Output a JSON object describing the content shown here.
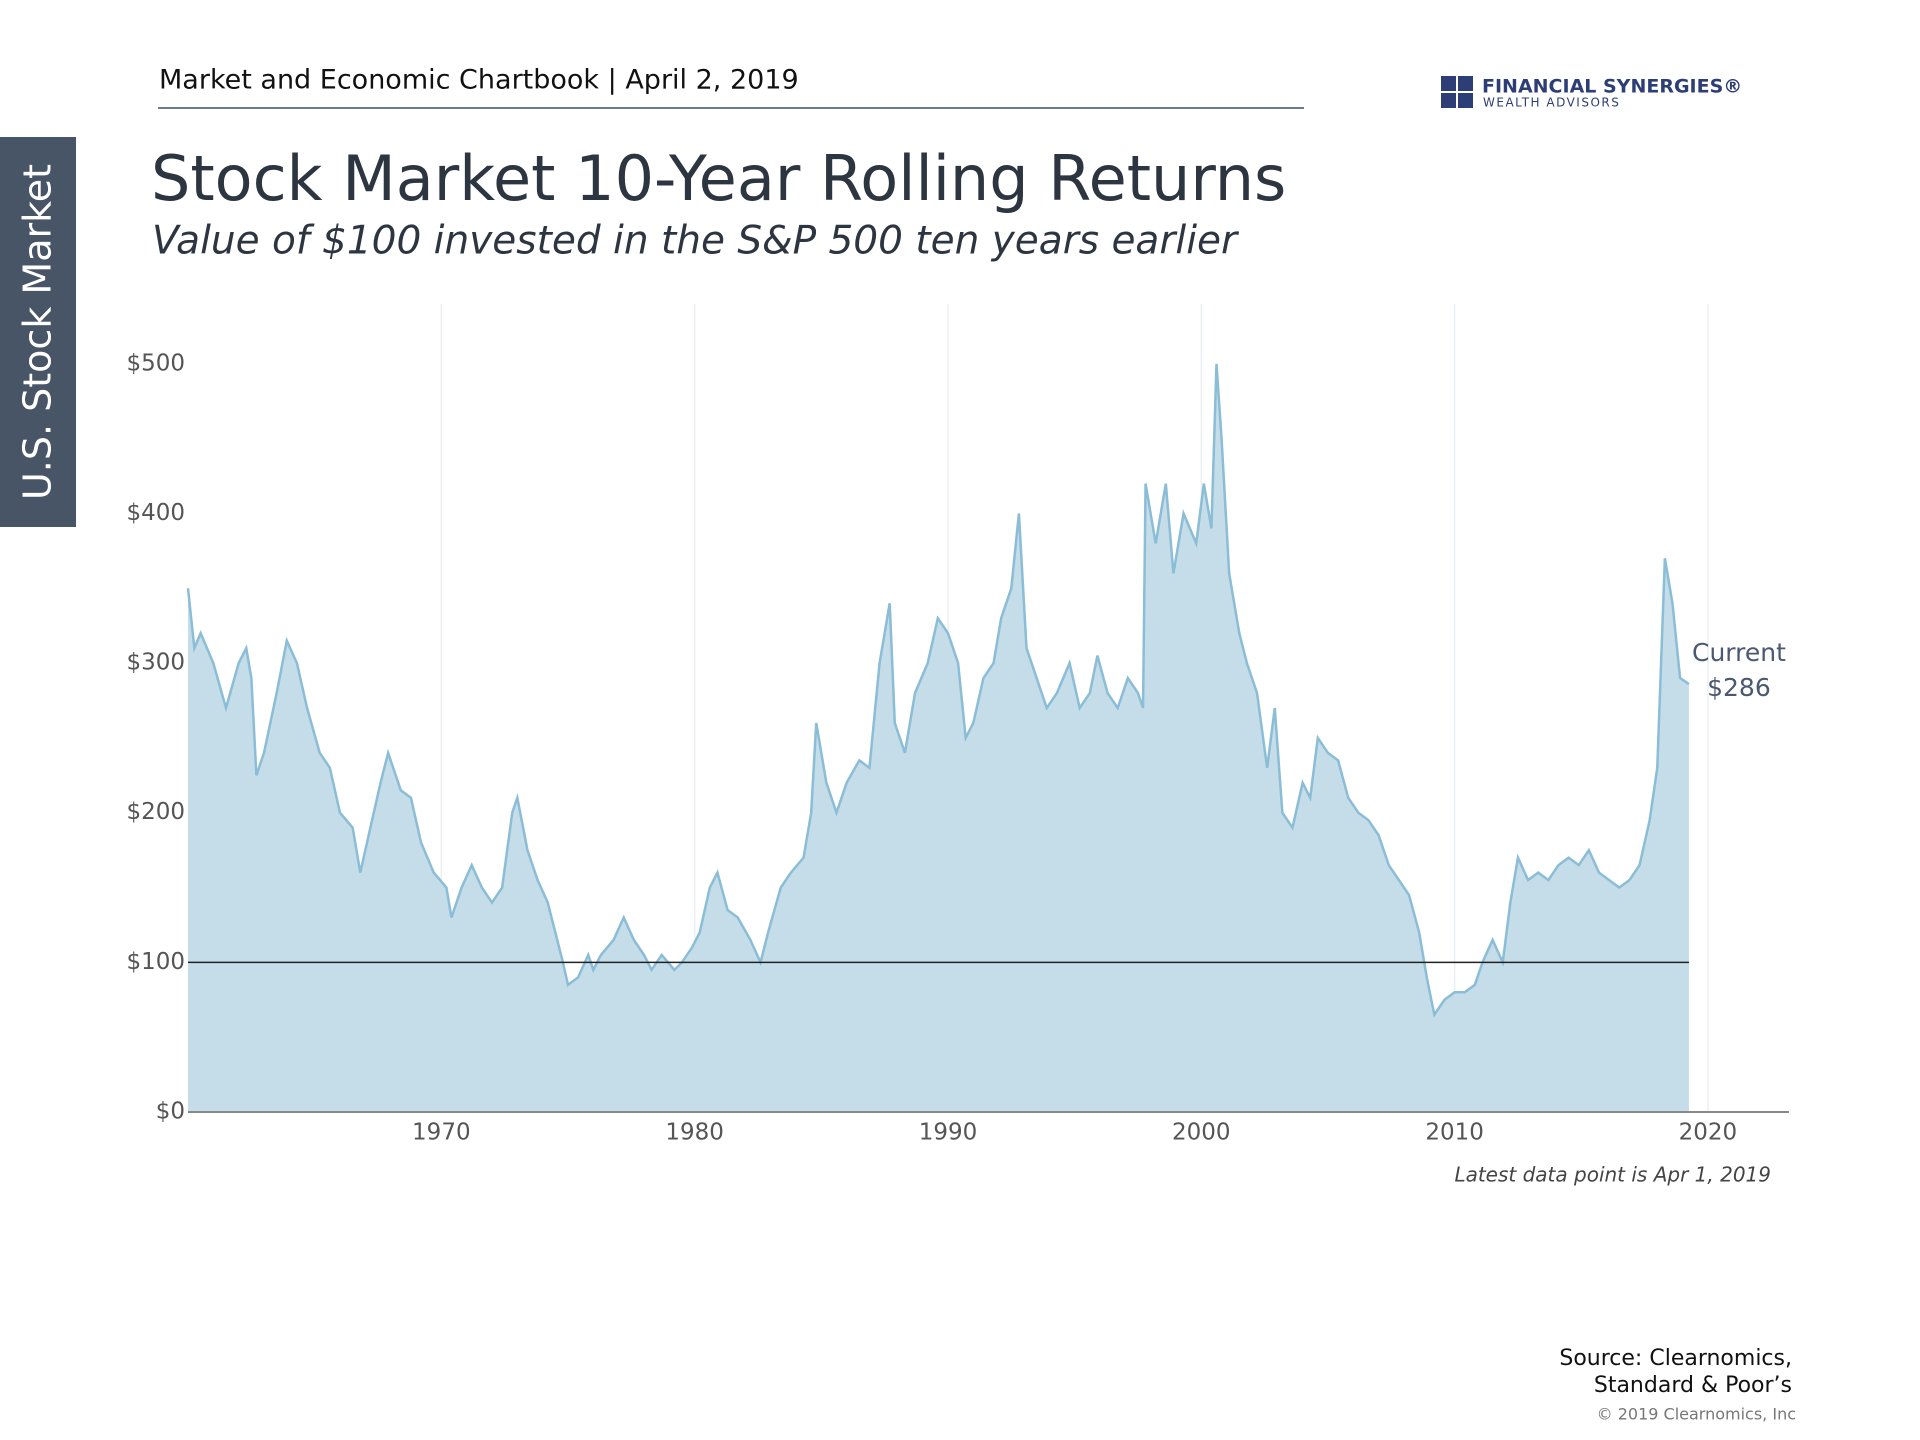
{
  "header": "Market and Economic Chartbook | April 2, 2019",
  "brand": {
    "name": "FINANCIAL SYNERGIES®",
    "sub": "WEALTH ADVISORS"
  },
  "side_tab": "U.S. Stock Market",
  "chart_data": {
    "type": "area",
    "title": "Stock Market 10-Year Rolling Returns",
    "subtitle": "Value of $100 invested in the S&P 500 ten years earlier",
    "annotation": [
      "Current",
      "$286"
    ],
    "note": "Latest data point is Apr 1, 2019",
    "reference_line": 100,
    "color": "#8bbdd6",
    "fill": "#c5dde9",
    "xlim": [
      1960,
      2023.2
    ],
    "ylim": [
      0,
      540
    ],
    "xticks": [
      1970,
      1980,
      1990,
      2000,
      2010,
      2020
    ],
    "yticks": [
      {
        "value": 0,
        "label": "$0"
      },
      {
        "value": 100,
        "label": "$100"
      },
      {
        "value": 200,
        "label": "$200"
      },
      {
        "value": 300,
        "label": "$300"
      },
      {
        "value": 400,
        "label": "$400"
      },
      {
        "value": 500,
        "label": "$500"
      }
    ],
    "grid": true,
    "x": [
      1960.0,
      1960.25,
      1960.5,
      1961,
      1961.5,
      1962,
      1962.3,
      1962.5,
      1962.7,
      1963,
      1963.5,
      1963.9,
      1964.3,
      1964.7,
      1965.2,
      1965.6,
      1966,
      1966.5,
      1966.8,
      1967.2,
      1967.6,
      1967.9,
      1968.4,
      1968.8,
      1969.2,
      1969.7,
      1970.2,
      1970.4,
      1970.8,
      1971.2,
      1971.6,
      1972,
      1972.4,
      1972.8,
      1973.0,
      1973.4,
      1973.8,
      1974.2,
      1974.5,
      1974.8,
      1975.0,
      1975.4,
      1975.8,
      1976.0,
      1976.3,
      1976.8,
      1977.2,
      1977.6,
      1978.0,
      1978.3,
      1978.7,
      1979.2,
      1979.5,
      1979.9,
      1980.2,
      1980.6,
      1980.9,
      1981.3,
      1981.7,
      1982.2,
      1982.6,
      1982.9,
      1983.4,
      1983.8,
      1984.3,
      1984.6,
      1984.8,
      1985.2,
      1985.6,
      1986,
      1986.5,
      1986.9,
      1987.3,
      1987.7,
      1987.9,
      1988.3,
      1988.7,
      1989.2,
      1989.6,
      1990.0,
      1990.4,
      1990.7,
      1991.0,
      1991.4,
      1991.8,
      1992.1,
      1992.5,
      1992.8,
      1993.1,
      1993.5,
      1993.9,
      1994.3,
      1994.8,
      1995.2,
      1995.6,
      1995.9,
      1996.3,
      1996.7,
      1997.1,
      1997.5,
      1997.7,
      1997.8,
      1998.2,
      1998.6,
      1998.9,
      1999.3,
      1999.8,
      2000.1,
      2000.4,
      2000.6,
      2000.8,
      2001.1,
      2001.5,
      2001.8,
      2002.2,
      2002.6,
      2002.9,
      2003.2,
      2003.6,
      2004.0,
      2004.3,
      2004.6,
      2005.0,
      2005.4,
      2005.8,
      2006.2,
      2006.6,
      2007.0,
      2007.4,
      2007.8,
      2008.2,
      2008.6,
      2008.9,
      2009.2,
      2009.6,
      2010.0,
      2010.4,
      2010.8,
      2011.1,
      2011.5,
      2011.9,
      2012.2,
      2012.5,
      2012.9,
      2013.3,
      2013.7,
      2014.1,
      2014.5,
      2014.9,
      2015.3,
      2015.7,
      2016.1,
      2016.5,
      2016.9,
      2017.3,
      2017.7,
      2018.0,
      2018.3,
      2018.6,
      2018.9,
      2019.25
    ],
    "values": [
      350,
      310,
      320,
      300,
      270,
      300,
      310,
      290,
      225,
      240,
      280,
      315,
      300,
      270,
      240,
      230,
      200,
      190,
      160,
      190,
      220,
      240,
      215,
      210,
      180,
      160,
      150,
      130,
      150,
      165,
      150,
      140,
      150,
      200,
      210,
      175,
      155,
      140,
      120,
      100,
      85,
      90,
      105,
      95,
      105,
      115,
      130,
      115,
      105,
      95,
      105,
      95,
      100,
      110,
      120,
      150,
      160,
      135,
      130,
      115,
      100,
      120,
      150,
      160,
      170,
      200,
      260,
      220,
      200,
      220,
      235,
      230,
      300,
      340,
      260,
      240,
      280,
      300,
      330,
      320,
      300,
      250,
      260,
      290,
      300,
      330,
      350,
      400,
      310,
      290,
      270,
      280,
      300,
      270,
      280,
      305,
      280,
      270,
      290,
      280,
      270,
      420,
      380,
      420,
      360,
      400,
      380,
      420,
      390,
      500,
      450,
      360,
      320,
      300,
      280,
      230,
      270,
      200,
      190,
      220,
      210,
      250,
      240,
      235,
      210,
      200,
      195,
      185,
      165,
      155,
      145,
      120,
      90,
      65,
      75,
      80,
      80,
      85,
      100,
      115,
      100,
      140,
      170,
      155,
      160,
      155,
      165,
      170,
      165,
      175,
      160,
      155,
      150,
      155,
      165,
      195,
      230,
      370,
      340,
      290,
      286
    ]
  },
  "source": [
    "Source: Clearnomics,",
    "Standard & Poor’s"
  ],
  "copyright": "© 2019 Clearnomics, Inc"
}
